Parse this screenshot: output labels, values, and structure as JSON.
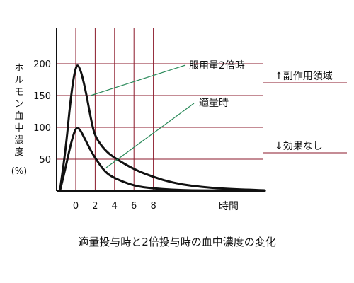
{
  "chart_data": {
    "type": "line",
    "title": "適量投与時と2倍投与時の血中濃度の変化",
    "xlabel": "時間",
    "ylabel": "ホルモン血中濃度",
    "ylabel_unit": "(%)",
    "x_ticks": [
      "0",
      "2",
      "4",
      "6",
      "8"
    ],
    "y_ticks": [
      "50",
      "100",
      "150",
      "200"
    ],
    "xlim": [
      -2,
      20
    ],
    "ylim": [
      0,
      230
    ],
    "grid": true,
    "grid_color": "#8b1a2b",
    "line_color": "#111111",
    "annotation_color": "#2a8a5a",
    "reference_lines": [
      {
        "y": 150,
        "label": "↑副作用領域"
      },
      {
        "y": 55,
        "label": "↓効果なし"
      }
    ],
    "series": [
      {
        "name": "服用量2倍時",
        "x": [
          -1.6,
          -1,
          -0.5,
          0,
          0.4,
          1,
          1.6,
          2,
          3,
          4,
          6,
          8,
          10,
          12,
          14,
          16,
          18,
          19.5
        ],
        "y": [
          4,
          70,
          150,
          198,
          196,
          160,
          110,
          85,
          64,
          52,
          34,
          22,
          13,
          8,
          5,
          3,
          2,
          1
        ]
      },
      {
        "name": "適量時",
        "x": [
          -1.6,
          -1,
          -0.5,
          0,
          0.4,
          1,
          1.6,
          2,
          3,
          4,
          6,
          8,
          10,
          12,
          14,
          16,
          18,
          19.5
        ],
        "y": [
          2,
          40,
          75,
          100,
          98,
          80,
          62,
          52,
          30,
          20,
          8,
          4,
          2,
          1,
          1,
          0.5,
          0.5,
          0.5
        ]
      }
    ]
  }
}
